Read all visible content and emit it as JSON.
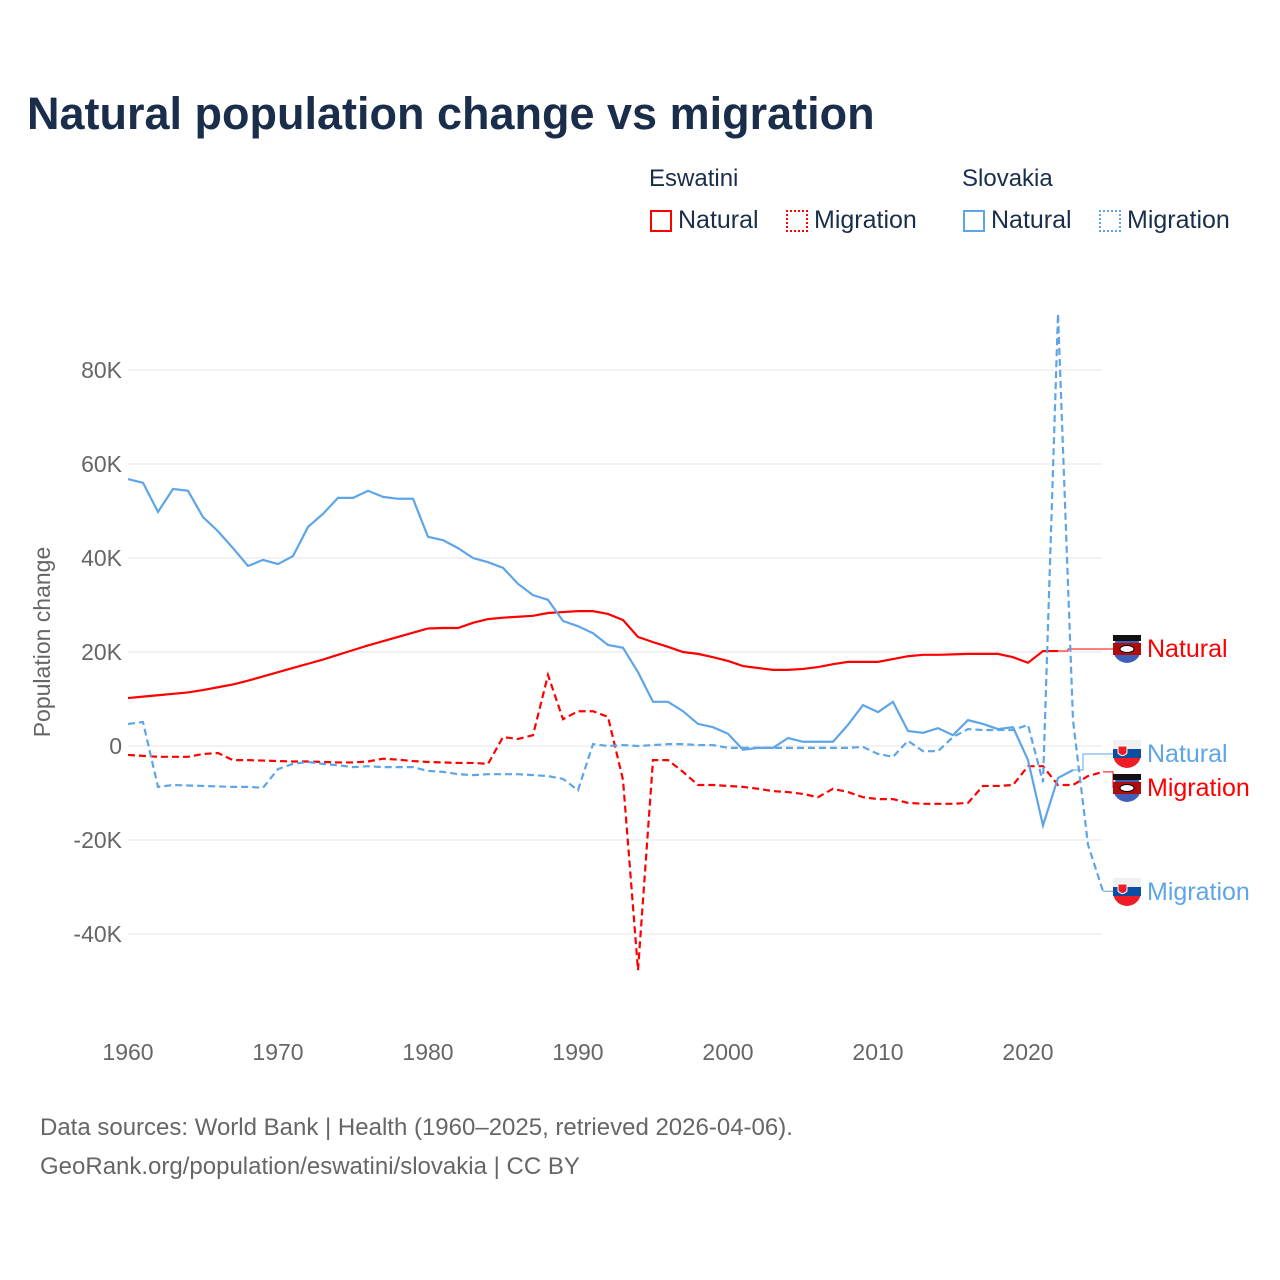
{
  "chart_data": {
    "type": "line",
    "title": "Natural population change vs migration",
    "ylabel": "Population change",
    "xlabel": "",
    "xlim": [
      1960,
      2025
    ],
    "ylim": [
      -50000,
      95000
    ],
    "xticks": [
      1960,
      1970,
      1980,
      1990,
      2000,
      2010,
      2020
    ],
    "xtick_labels": [
      "1960",
      "1970",
      "1980",
      "1990",
      "2000",
      "2010",
      "2020"
    ],
    "yticks": [
      -40000,
      -20000,
      0,
      20000,
      40000,
      60000,
      80000
    ],
    "ytick_labels": [
      "-40K",
      "-20K",
      "0",
      "20K",
      "40K",
      "60K",
      "80K"
    ],
    "grid": true,
    "legend_placement": "top-right",
    "legend": {
      "groups": [
        {
          "name": "Eswatini",
          "items": [
            "Natural",
            "Migration"
          ]
        },
        {
          "name": "Slovakia",
          "items": [
            "Natural",
            "Migration"
          ]
        }
      ]
    },
    "series": [
      {
        "name": "Eswatini Natural",
        "country": "Eswatini",
        "kind": "Natural",
        "color": "#ff0000",
        "dash": false,
        "end_label": "Natural",
        "start_year": 1960,
        "values": [
          10200,
          10500,
          10800,
          11100,
          11400,
          11900,
          12500,
          13100,
          13900,
          14800,
          15700,
          16600,
          17500,
          18400,
          19400,
          20400,
          21400,
          22300,
          23200,
          24100,
          25000,
          25100,
          25100,
          26200,
          27000,
          27300,
          27500,
          27700,
          28300,
          28500,
          28700,
          28700,
          28100,
          26800,
          23200,
          22100,
          21100,
          20000,
          19600,
          18900,
          18100,
          17000,
          16600,
          16200,
          16200,
          16400,
          16800,
          17400,
          17900,
          17900,
          17900,
          18500,
          19100,
          19400,
          19400,
          19500,
          19600,
          19600,
          19600,
          18900,
          17700,
          20200,
          20200
        ]
      },
      {
        "name": "Eswatini Migration",
        "country": "Eswatini",
        "kind": "Migration",
        "color": "#ff0000",
        "dash": true,
        "end_label": "Migration",
        "start_year": 1960,
        "values": [
          -1900,
          -2100,
          -2300,
          -2300,
          -2300,
          -1700,
          -1500,
          -3000,
          -3000,
          -3100,
          -3200,
          -3300,
          -3300,
          -3400,
          -3500,
          -3500,
          -3300,
          -2700,
          -2900,
          -3200,
          -3400,
          -3500,
          -3600,
          -3600,
          -3800,
          1900,
          1500,
          2300,
          15100,
          5700,
          7400,
          7400,
          6200,
          -7200,
          -47700,
          -3000,
          -3000,
          -5500,
          -8300,
          -8300,
          -8500,
          -8700,
          -9100,
          -9600,
          -9800,
          -10200,
          -10900,
          -9100,
          -9800,
          -10900,
          -11300,
          -11300,
          -12100,
          -12300,
          -12300,
          -12300,
          -12100,
          -8500,
          -8500,
          -8300,
          -4300,
          -4300,
          -8300,
          -8300,
          -6400,
          -5500
        ]
      },
      {
        "name": "Slovakia Natural",
        "country": "Slovakia",
        "kind": "Natural",
        "color": "#5ea5e8",
        "dash": false,
        "end_label": "Natural",
        "start_year": 1960,
        "values": [
          56800,
          56000,
          49800,
          54700,
          54300,
          48700,
          45700,
          42100,
          38300,
          39600,
          38700,
          40400,
          46600,
          49400,
          52800,
          52800,
          54300,
          53000,
          52600,
          52600,
          44500,
          43800,
          42100,
          40000,
          39100,
          37900,
          34500,
          32100,
          31100,
          26600,
          25500,
          24000,
          21500,
          20900,
          15700,
          9400,
          9400,
          7400,
          4700,
          4000,
          2600,
          -800,
          -400,
          -400,
          1700,
          900,
          900,
          900,
          4500,
          8700,
          7200,
          9400,
          3200,
          2800,
          3800,
          2300,
          5500,
          4700,
          3600,
          4000,
          -3000,
          -16900,
          -6800,
          -5100
        ]
      },
      {
        "name": "Slovakia Migration",
        "country": "Slovakia",
        "kind": "Migration",
        "color": "#5ea5e8",
        "dash": true,
        "end_label": "Migration",
        "start_year": 1960,
        "values": [
          4700,
          5100,
          -8700,
          -8300,
          -8400,
          -8500,
          -8600,
          -8700,
          -8700,
          -8900,
          -4900,
          -3800,
          -3400,
          -3800,
          -4100,
          -4500,
          -4300,
          -4500,
          -4500,
          -4500,
          -5300,
          -5500,
          -6000,
          -6200,
          -6000,
          -6000,
          -6000,
          -6200,
          -6400,
          -7000,
          -9400,
          400,
          0,
          200,
          0,
          200,
          400,
          400,
          200,
          200,
          -400,
          -400,
          -400,
          -400,
          -400,
          -400,
          -400,
          -400,
          -400,
          -200,
          -1700,
          -2300,
          1100,
          -1100,
          -1100,
          1900,
          3600,
          3400,
          3400,
          3400,
          4500,
          -7700,
          92000,
          5500,
          -21000,
          -30900
        ]
      }
    ]
  },
  "legend_titles": {
    "eswatini": "Eswatini",
    "slovakia": "Slovakia"
  },
  "legend_labels": {
    "natural": "Natural",
    "migration": "Migration"
  },
  "end_labels": {
    "esw_nat": "Natural",
    "svk_nat": "Natural",
    "esw_mig": "Migration",
    "svk_mig": "Migration"
  },
  "source_line1": "Data sources: World Bank | Health (1960–2025, retrieved 2026-04-06).",
  "source_line2": "GeoRank.org/population/eswatini/slovakia | CC BY"
}
